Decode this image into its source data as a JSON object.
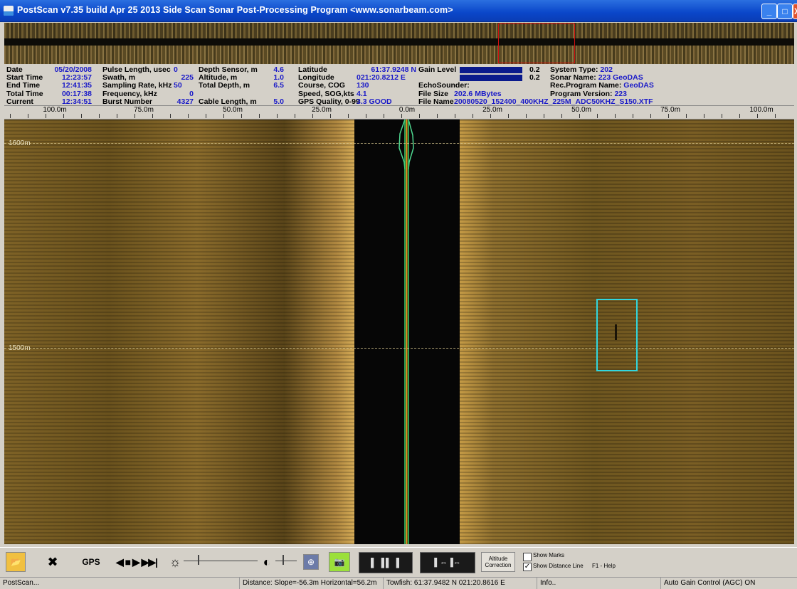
{
  "window": {
    "title": "PostScan v7.35 build Apr 25 2013  Side Scan Sonar Post-Processing Program  <www.sonarbeam.com>",
    "minimize": "_",
    "maximize": "□",
    "close": "X"
  },
  "info": {
    "col1": [
      {
        "label": "Date",
        "value": "05/20/2008"
      },
      {
        "label": "Start Time",
        "value": "12:23:57"
      },
      {
        "label": "End  Time",
        "value": "12:41:35"
      },
      {
        "label": "Total Time",
        "value": "00:17:38"
      },
      {
        "label": "Current",
        "value": "12:34:51"
      }
    ],
    "col2": [
      {
        "label": "Pulse Length, usec",
        "value": "0"
      },
      {
        "label": "Swath, m",
        "value": "225"
      },
      {
        "label": "Sampling Rate, kHz",
        "value": "50"
      },
      {
        "label": "Frequency, kHz",
        "value": "0"
      },
      {
        "label": "Burst Number",
        "value": "4327"
      }
    ],
    "col3": [
      {
        "label": "Depth Sensor, m",
        "value": "4.6"
      },
      {
        "label": "Altitude, m",
        "value": "1.0"
      },
      {
        "label": "Total Depth, m",
        "value": "6.5"
      },
      {
        "label": "",
        "value": ""
      },
      {
        "label": "Cable Length, m",
        "value": "5.0"
      }
    ],
    "col4": [
      {
        "label": "Latitude",
        "value": "61:37.9248 N"
      },
      {
        "label": "Longitude",
        "value": "021:20.8212 E"
      },
      {
        "label": "Course, COG",
        "value": "130"
      },
      {
        "label": "Speed, SOG,kts",
        "value": "4.1"
      },
      {
        "label": "GPS Quality, 0-99",
        "value": "3.3 GOOD"
      }
    ],
    "gain_label": "Gain Level",
    "gain_values": [
      "0.2",
      "0.2"
    ],
    "echosounder_label": "EchoSounder:",
    "file_size_label": "File Size",
    "file_size": "202.6 MBytes",
    "file_name_label": "File Name",
    "file_name": "20080520_152400_400KHZ_225M_ADC50KHZ_S150.XTF",
    "col6": [
      {
        "label": "System Type:",
        "value": "202"
      },
      {
        "label": "Sonar Name:",
        "value": "223 GeoDAS"
      },
      {
        "label": "Rec.Program Name:",
        "value": "GeoDAS"
      },
      {
        "label": "Program Version:",
        "value": "223"
      }
    ]
  },
  "ruler": [
    "100.0m",
    "75.0m",
    "50.0m",
    "25.0m",
    "0.0m",
    "25.0m",
    "50.0m",
    "75.0m",
    "100.0m"
  ],
  "sonar": {
    "range_labels": [
      "1600m",
      "1500m"
    ]
  },
  "toolbar": {
    "gps": "GPS",
    "nav": "◀ ■ ▶ ▶▶|",
    "altitude_correction": [
      "Altitude",
      "Correction"
    ],
    "show_marks": "Show Marks",
    "show_distance": "Show Distance Line",
    "show_distance_checked": "✓",
    "help": "F1 - Help"
  },
  "status": {
    "app": "PostScan...",
    "distance": "Distance: Slope=-56.3m Horizontal=56.2m",
    "towfish": "Towfish: 61:37.9482 N  021:20.8616 E",
    "info": "Info..",
    "agc": "Auto Gain Control (AGC) ON"
  },
  "colors": {
    "title_blue": "#0a46c9",
    "value_blue": "#1a1ac8",
    "target_cyan": "#31d6de",
    "overview_box": "#d01010"
  }
}
